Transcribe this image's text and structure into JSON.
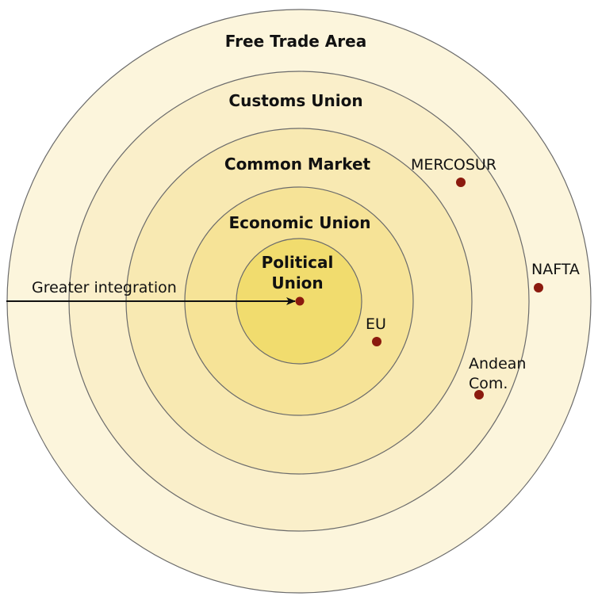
{
  "rings": [
    {
      "label": "Free Trade Area",
      "fill": "#fcf5dc"
    },
    {
      "label": "Customs Union",
      "fill": "#faefca"
    },
    {
      "label": "Common Market",
      "fill": "#f8e9b2"
    },
    {
      "label": "Economic Union",
      "fill": "#f6e397"
    },
    {
      "label_line1": "Political",
      "label_line2": "Union",
      "fill": "#f1dc6e"
    }
  ],
  "arrow_label": "Greater integration",
  "blocs": [
    {
      "label": "MERCOSUR"
    },
    {
      "label": "NAFTA"
    },
    {
      "label": "EU"
    },
    {
      "label_line1": "Andean",
      "label_line2": "Com."
    }
  ],
  "colors": {
    "dot": "#8b1a0e",
    "stroke": "#6b6b6b"
  }
}
